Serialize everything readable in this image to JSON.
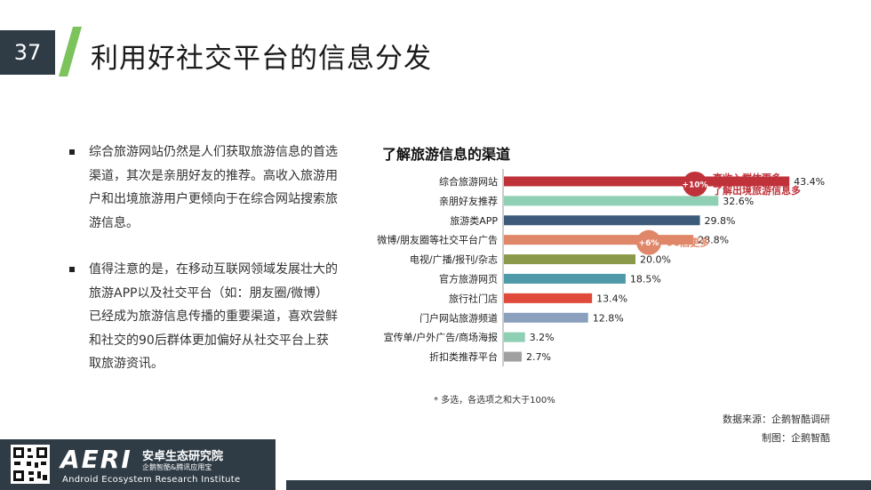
{
  "slide": {
    "number": "37",
    "title": "利用好社交平台的信息分发",
    "accent_color": "#7cc35b",
    "dark_color": "#2f3b45"
  },
  "bullets": [
    "综合旅游网站仍然是人们获取旅游信息的首选渠道，其次是亲朋好友的推荐。高收入旅游用户和出境旅游用户更倾向于在综合网站搜索旅游信息。",
    "值得注意的是，在移动互联网领域发展壮大的旅游APP以及社交平台（如：朋友圈/微博）已经成为旅游信息传播的重要渠道，喜欢尝鲜和社交的90后群体更加偏好从社交平台上获取旅游资讯。"
  ],
  "chart_data": {
    "type": "bar",
    "orientation": "horizontal",
    "title": "了解旅游信息的渠道",
    "categories": [
      "综合旅游网站",
      "亲朋好友推荐",
      "旅游类APP",
      "微博/朋友圈等社交平台广告",
      "电视/广播/报刊/杂志",
      "官方旅游网页",
      "旅行社门店",
      "门户网站旅游频道",
      "宣传单/户外广告/商场海报",
      "折扣类推荐平台"
    ],
    "values": [
      43.4,
      32.6,
      29.8,
      28.8,
      20.0,
      18.5,
      13.4,
      12.8,
      3.2,
      2.7
    ],
    "value_labels": [
      "43.4%",
      "32.6%",
      "29.8%",
      "28.8%",
      "20.0%",
      "18.5%",
      "13.4%",
      "12.8%",
      "3.2%",
      "2.7%"
    ],
    "colors": [
      "#c0323a",
      "#8fcfb3",
      "#3c5a7a",
      "#e0876a",
      "#8a9a4a",
      "#4e9aa8",
      "#e04a3a",
      "#8aa0bd",
      "#8fcfb3",
      "#a0a0a0"
    ],
    "xlim": [
      0,
      50
    ],
    "annotations": [
      {
        "row": 0,
        "badge": "+10%",
        "badge_color": "#c0323a",
        "text_lines": [
          "高收入群体更多，",
          "了解出境旅游信息多"
        ],
        "text_color": "#c0323a"
      },
      {
        "row": 3,
        "badge": "+6%",
        "badge_color": "#e0876a",
        "text_lines": [
          "90后更多"
        ],
        "text_color": "#e0876a"
      }
    ],
    "footnote": "*   多选，各选项之和大于100%"
  },
  "source": "数据来源：企鹅智酷调研",
  "credit": "制图：企鹅智酷",
  "footer": {
    "logo": "AERI",
    "org_cn": "安卓生态研究院",
    "org_sub": "企鹅智酷&腾讯应用宝",
    "org_en": "Android Ecosystem Research Institute"
  }
}
